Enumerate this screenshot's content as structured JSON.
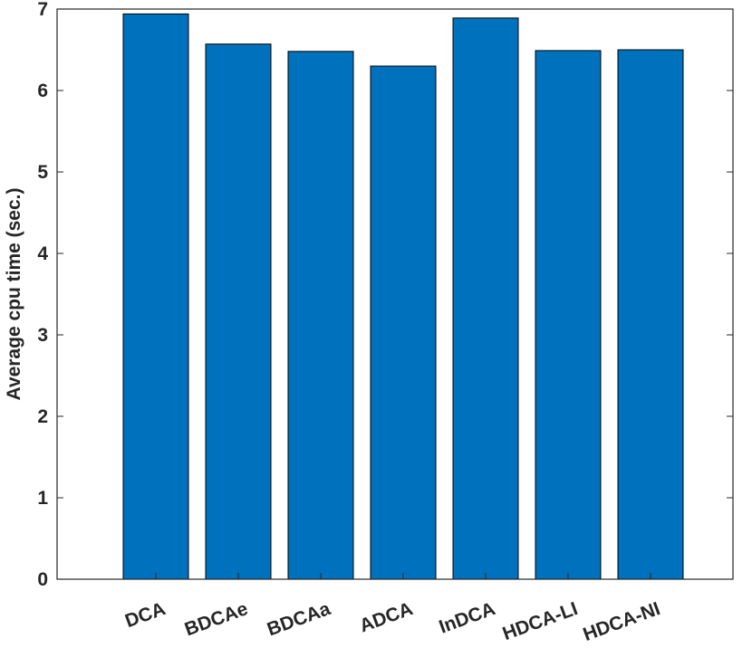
{
  "chart_data": {
    "type": "bar",
    "y_label": "Average cpu time (sec.)",
    "categories": [
      "DCA",
      "BDCAe",
      "BDCAa",
      "ADCA",
      "InDCA",
      "HDCA-LI",
      "HDCA-NI"
    ],
    "values": [
      6.94,
      6.57,
      6.48,
      6.3,
      6.89,
      6.49,
      6.5
    ],
    "color": "#0072bd",
    "ylim": [
      0,
      7
    ],
    "yticks": [
      0,
      1,
      2,
      3,
      4,
      5,
      6,
      7
    ],
    "grid": false
  }
}
